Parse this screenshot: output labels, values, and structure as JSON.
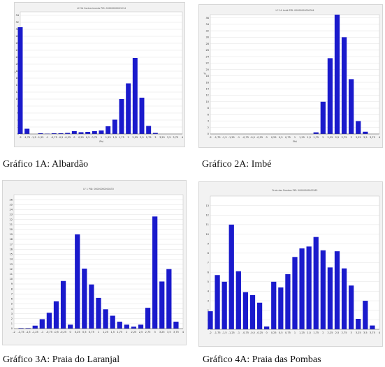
{
  "captions": {
    "c1": "Gráfico 1A: Albardão",
    "c2": "Gráfico 2A: Imbé",
    "c3": "Gráfico 3A: Praia do Laranjal",
    "c4": "Gráfico 4A: Praia das Pombas"
  },
  "colors": {
    "bar": "#1a1acc",
    "panel_bg": "#f2f2f2",
    "plot_bg": "#ffffff",
    "grid": "#d9d9d9"
  },
  "chart_data": [
    {
      "type": "bar",
      "title": "LC 3A Conhecimento PID: 00000000001214",
      "xlabel": "Phi",
      "ylabel": "%",
      "x_ticks": [
        "-2",
        "-1,75",
        "-1,5",
        "-1,25",
        "-1",
        "-0,75",
        "-0,5",
        "-0,25",
        "0",
        "0,25",
        "0,5",
        "0,75",
        "1",
        "1,25",
        "1,5",
        "1,75",
        "2",
        "2,25",
        "2,5",
        "2,75",
        "3",
        "3,25",
        "3,5",
        "3,75",
        "4"
      ],
      "y_ticks": [
        "0",
        "2",
        "4",
        "6",
        "8",
        "10",
        "12",
        "14",
        "16",
        "18",
        "20",
        "22",
        "24",
        "26",
        "28",
        "30",
        "32",
        "34"
      ],
      "ylim": [
        0,
        35
      ],
      "bar_x": [
        -2,
        -1.75,
        -1.5,
        -1.25,
        -1,
        -0.75,
        -0.5,
        -0.25,
        0,
        0.25,
        0.5,
        0.75,
        1,
        1.25,
        1.5,
        1.75,
        2,
        2.25,
        2.5,
        2.75,
        3,
        3.25,
        3.5
      ],
      "values": [
        30.6,
        1.5,
        0,
        0.2,
        0.1,
        0.2,
        0.2,
        0.3,
        0.8,
        0.5,
        0.6,
        0.8,
        1.0,
        2.2,
        4.1,
        10.0,
        14.5,
        21.8,
        10.4,
        2.3,
        0.3,
        0,
        0
      ],
      "grid": true
    },
    {
      "type": "bar",
      "title": "LC 1A Imbé PID: 00000000000094",
      "xlabel": "Phi",
      "ylabel": "%",
      "x_ticks": [
        "-2",
        "-1,75",
        "-1,5",
        "-1,25",
        "-1",
        "-0,75",
        "-0,5",
        "-0,25",
        "0",
        "0,25",
        "0,5",
        "0,75",
        "1",
        "1,25",
        "1,5",
        "1,75",
        "2",
        "2,25",
        "2,5",
        "2,75",
        "3",
        "3,25",
        "3,5",
        "3,75",
        "4"
      ],
      "y_ticks": [
        "0",
        "2",
        "4",
        "6",
        "8",
        "10",
        "12",
        "14",
        "16",
        "18",
        "20",
        "22",
        "24",
        "26",
        "28",
        "30",
        "32",
        "34",
        "36"
      ],
      "ylim": [
        0,
        37
      ],
      "bar_x": [
        1.75,
        2,
        2.25,
        2.5,
        2.75,
        3,
        3.25,
        3.5
      ],
      "values": [
        0.5,
        10.0,
        23.5,
        37.0,
        30.0,
        17.0,
        4.0,
        0.7
      ],
      "grid": true
    },
    {
      "type": "bar",
      "title": "LF 1 PID: 00000000000433",
      "xlabel": "",
      "ylabel": "",
      "x_ticks": [
        "-2",
        "-1,75",
        "-1,5",
        "-1,25",
        "-1",
        "-0,75",
        "-0,5",
        "-0,25",
        "0",
        "0,25",
        "0,5",
        "0,75",
        "1",
        "1,25",
        "1,5",
        "1,75",
        "2",
        "2,25",
        "2,5",
        "2,75",
        "3",
        "3,25",
        "3,5",
        "3,75",
        "4"
      ],
      "y_ticks": [
        "0",
        "1",
        "2",
        "3",
        "4",
        "5",
        "6",
        "7",
        "8",
        "9",
        "10",
        "11",
        "12",
        "13",
        "14",
        "15",
        "16",
        "17",
        "18",
        "19",
        "20",
        "21",
        "22",
        "23",
        "24",
        "25",
        "26"
      ],
      "ylim": [
        0,
        27
      ],
      "bar_x": [
        -1.75,
        -1.5,
        -1.25,
        -1,
        -0.75,
        -0.5,
        -0.25,
        0,
        0.25,
        0.5,
        0.75,
        1,
        1.25,
        1.5,
        1.75,
        2,
        2.25,
        2.5,
        2.75,
        3,
        3.25,
        3.5,
        3.75
      ],
      "values": [
        0.1,
        0.1,
        0.6,
        1.9,
        3.2,
        5.5,
        9.6,
        0.8,
        19.0,
        12.1,
        8.9,
        6.2,
        3.9,
        2.6,
        1.4,
        0.8,
        0.4,
        0.8,
        4.2,
        22.6,
        9.5,
        12.0,
        1.4
      ],
      "grid": true
    },
    {
      "type": "bar",
      "title": "Praia das Pombas PID: 00000000000263",
      "xlabel": "",
      "ylabel": "",
      "x_ticks": [
        "-2",
        "-1,75",
        "-1,5",
        "-1,25",
        "-1",
        "-0,75",
        "-0,5",
        "-0,25",
        "0",
        "0,25",
        "0,5",
        "0,75",
        "1",
        "1,25",
        "1,5",
        "1,75",
        "2",
        "2,25",
        "2,5",
        "2,75",
        "3",
        "3,25",
        "3,5",
        "3,75",
        "4"
      ],
      "y_ticks": [
        "0",
        "1",
        "2",
        "3",
        "4",
        "5",
        "6",
        "7",
        "8",
        "9",
        "10",
        "11",
        "12",
        "13"
      ],
      "ylim": [
        0,
        14
      ],
      "bar_x": [
        -2,
        -1.75,
        -1.5,
        -1.25,
        -1,
        -0.75,
        -0.5,
        -0.25,
        0,
        0.25,
        0.5,
        0.75,
        1,
        1.25,
        1.5,
        1.75,
        2,
        2.25,
        2.5,
        2.75,
        3,
        3.25,
        3.5,
        3.75
      ],
      "values": [
        1.9,
        5.7,
        5.0,
        11.0,
        6.1,
        3.9,
        3.6,
        2.8,
        0.3,
        5.0,
        4.4,
        5.8,
        7.6,
        8.5,
        8.7,
        9.7,
        8.3,
        6.5,
        8.2,
        6.4,
        4.6,
        1.1,
        3.0,
        0.4
      ],
      "grid": true
    }
  ]
}
